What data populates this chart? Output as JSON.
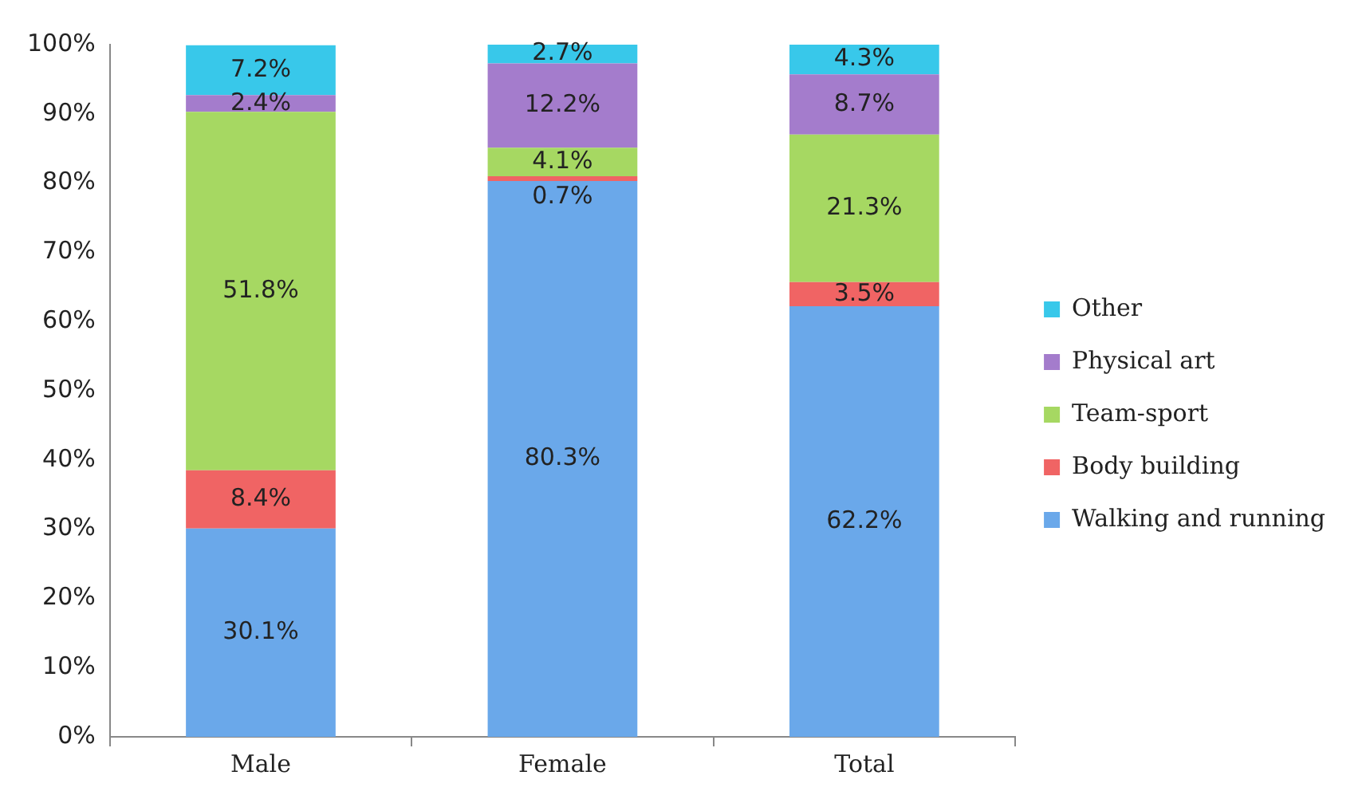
{
  "chart_data": {
    "type": "bar",
    "stacked": true,
    "categories": [
      "Male",
      "Female",
      "Total"
    ],
    "series": [
      {
        "name": "Walking and running",
        "color": "#6aa8ea",
        "values": [
          30.1,
          80.3,
          62.2
        ],
        "value_labels": [
          "30.1%",
          "80.3%",
          "62.2%"
        ]
      },
      {
        "name": "Body building",
        "color": "#f06464",
        "values": [
          8.4,
          0.7,
          3.5
        ],
        "value_labels": [
          "8.4%",
          "0.7%",
          "3.5%"
        ]
      },
      {
        "name": "Team-sport",
        "color": "#a6d862",
        "values": [
          51.8,
          4.1,
          21.3
        ],
        "value_labels": [
          "51.8%",
          "4.1%",
          "21.3%"
        ]
      },
      {
        "name": "Physical art",
        "color": "#a47ccc",
        "values": [
          2.4,
          12.2,
          8.7
        ],
        "value_labels": [
          "2.4%",
          "12.2%",
          "8.7%"
        ]
      },
      {
        "name": "Other",
        "color": "#38c8ea",
        "values": [
          7.2,
          2.7,
          4.3
        ],
        "value_labels": [
          "7.2%",
          "2.7%",
          "4.3%"
        ]
      }
    ],
    "ylim": [
      0,
      100
    ],
    "yticks": [
      {
        "value": 0,
        "label": "0%"
      },
      {
        "value": 10,
        "label": "10%"
      },
      {
        "value": 20,
        "label": "20%"
      },
      {
        "value": 30,
        "label": "30%"
      },
      {
        "value": 40,
        "label": "40%"
      },
      {
        "value": 50,
        "label": "50%"
      },
      {
        "value": 60,
        "label": "60%"
      },
      {
        "value": 70,
        "label": "70%"
      },
      {
        "value": 80,
        "label": "80%"
      },
      {
        "value": 90,
        "label": "90%"
      },
      {
        "value": 100,
        "label": "100%"
      }
    ],
    "grid": false,
    "legend": "right"
  }
}
